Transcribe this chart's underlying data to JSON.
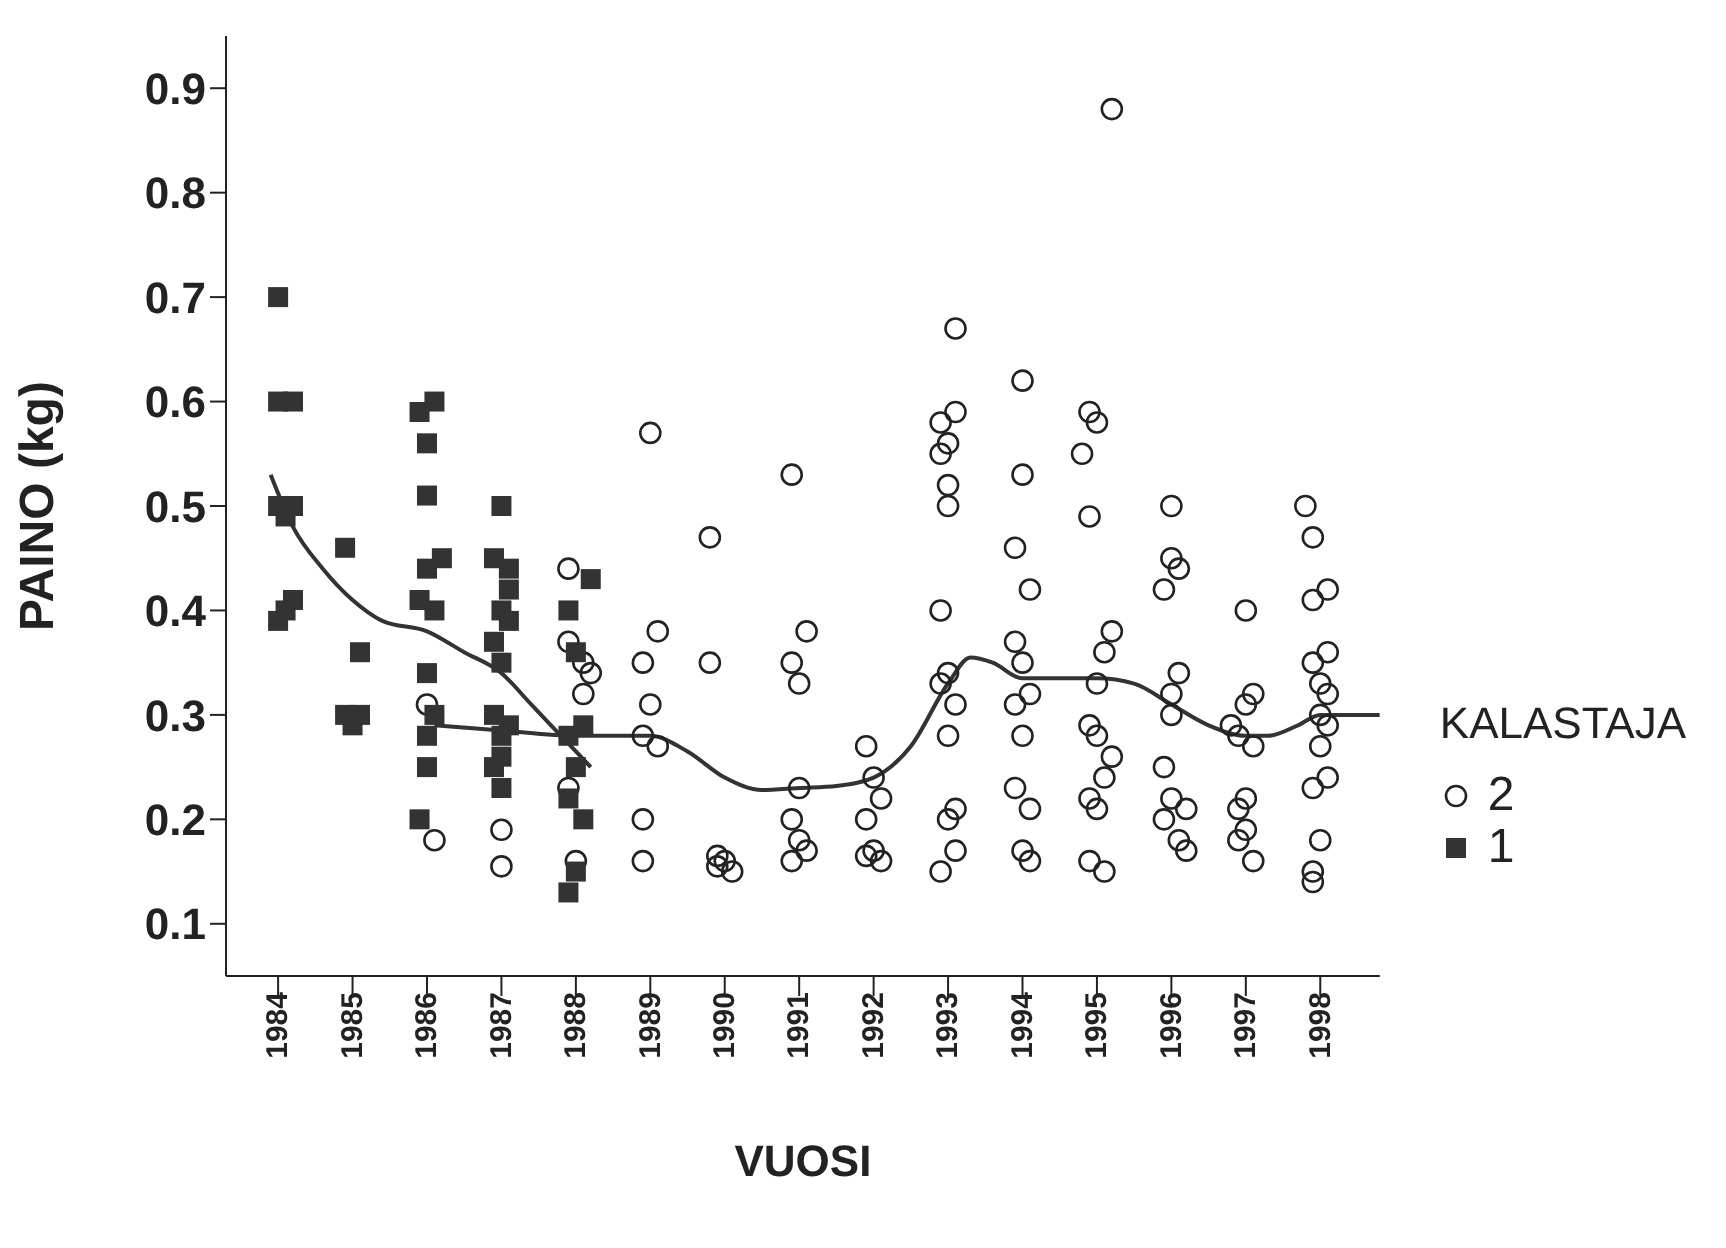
{
  "chart_data": {
    "type": "scatter",
    "xlabel": "VUOSI",
    "ylabel": "PAINO (kg)",
    "legend_title": "KALASTAJA",
    "legend": "right",
    "grid": false,
    "xlim": [
      1983.3,
      1998.8
    ],
    "xticks": [
      1984,
      1985,
      1986,
      1987,
      1988,
      1989,
      1990,
      1991,
      1992,
      1993,
      1994,
      1995,
      1996,
      1997,
      1998
    ],
    "ylim": [
      0.05,
      0.95
    ],
    "yticks": [
      0.1,
      0.2,
      0.3,
      0.4,
      0.5,
      0.6,
      0.7,
      0.8,
      0.9
    ],
    "series": [
      {
        "name": "2",
        "color": "#222222",
        "marker": "circle",
        "x": [
          1986.0,
          1986.1,
          1987.0,
          1987.0,
          1987.9,
          1987.9,
          1988.1,
          1988.2,
          1988.1,
          1987.9,
          1988.0,
          1988.9,
          1989.1,
          1988.9,
          1989.0,
          1988.9,
          1989.1,
          1988.9,
          1989.0,
          1989.8,
          1989.8,
          1989.9,
          1990.0,
          1989.9,
          1990.1,
          1990.9,
          1991.1,
          1990.9,
          1991.0,
          1991.0,
          1990.9,
          1991.0,
          1991.1,
          1990.9,
          1991.9,
          1992.0,
          1992.1,
          1991.9,
          1992.0,
          1992.1,
          1991.9,
          1993.1,
          1993.1,
          1992.9,
          1993.0,
          1992.9,
          1993.0,
          1993.0,
          1992.9,
          1993.0,
          1992.9,
          1993.1,
          1993.0,
          1993.1,
          1993.0,
          1993.1,
          1992.9,
          1994.0,
          1994.0,
          1993.9,
          1994.1,
          1993.9,
          1994.0,
          1994.1,
          1993.9,
          1994.0,
          1993.9,
          1994.1,
          1994.0,
          1994.1,
          1995.2,
          1994.9,
          1995.0,
          1994.8,
          1994.9,
          1995.2,
          1995.1,
          1995.0,
          1994.9,
          1995.0,
          1995.2,
          1995.1,
          1994.9,
          1995.0,
          1994.9,
          1995.1,
          1996.0,
          1996.0,
          1996.1,
          1995.9,
          1996.1,
          1996.0,
          1996.0,
          1995.9,
          1996.0,
          1996.2,
          1995.9,
          1996.1,
          1996.2,
          1997.0,
          1997.1,
          1997.0,
          1996.8,
          1996.9,
          1997.1,
          1997.0,
          1996.9,
          1997.0,
          1996.9,
          1997.1,
          1997.8,
          1997.9,
          1998.1,
          1997.9,
          1998.1,
          1997.9,
          1998.0,
          1998.1,
          1998.0,
          1998.1,
          1998.0,
          1998.1,
          1997.9,
          1998.0,
          1997.9,
          1997.9
        ],
        "values": [
          0.31,
          0.18,
          0.19,
          0.155,
          0.44,
          0.37,
          0.35,
          0.34,
          0.32,
          0.23,
          0.16,
          0.2,
          0.38,
          0.35,
          0.31,
          0.28,
          0.27,
          0.16,
          0.57,
          0.47,
          0.35,
          0.165,
          0.16,
          0.155,
          0.15,
          0.53,
          0.38,
          0.35,
          0.33,
          0.23,
          0.2,
          0.18,
          0.17,
          0.16,
          0.27,
          0.24,
          0.22,
          0.2,
          0.17,
          0.16,
          0.165,
          0.67,
          0.59,
          0.58,
          0.56,
          0.55,
          0.52,
          0.5,
          0.4,
          0.34,
          0.33,
          0.31,
          0.28,
          0.21,
          0.2,
          0.17,
          0.15,
          0.62,
          0.53,
          0.46,
          0.42,
          0.37,
          0.35,
          0.32,
          0.31,
          0.28,
          0.23,
          0.21,
          0.17,
          0.16,
          0.88,
          0.59,
          0.58,
          0.55,
          0.49,
          0.38,
          0.36,
          0.33,
          0.29,
          0.28,
          0.26,
          0.24,
          0.22,
          0.21,
          0.16,
          0.15,
          0.5,
          0.45,
          0.44,
          0.42,
          0.34,
          0.32,
          0.3,
          0.25,
          0.22,
          0.21,
          0.2,
          0.18,
          0.17,
          0.4,
          0.32,
          0.31,
          0.29,
          0.28,
          0.27,
          0.22,
          0.21,
          0.19,
          0.18,
          0.16,
          0.5,
          0.47,
          0.42,
          0.41,
          0.36,
          0.35,
          0.33,
          0.32,
          0.3,
          0.29,
          0.27,
          0.24,
          0.23,
          0.18,
          0.15,
          0.14
        ]
      },
      {
        "name": "1",
        "color": "#333333",
        "marker": "square",
        "x": [
          1984.0,
          1984.0,
          1984.2,
          1984.0,
          1984.1,
          1984.2,
          1984.0,
          1984.1,
          1984.2,
          1984.9,
          1984.9,
          1985.0,
          1985.1,
          1985.1,
          1985.9,
          1986.1,
          1986.0,
          1986.0,
          1986.0,
          1986.2,
          1985.9,
          1986.1,
          1986.0,
          1986.1,
          1986.0,
          1986.0,
          1985.9,
          1987.0,
          1986.9,
          1987.1,
          1987.1,
          1987.0,
          1987.1,
          1986.9,
          1987.0,
          1986.9,
          1987.1,
          1987.0,
          1987.0,
          1986.9,
          1987.0,
          1988.2,
          1987.9,
          1988.0,
          1988.1,
          1987.9,
          1988.0,
          1987.9,
          1988.1,
          1988.0,
          1987.9
        ],
        "values": [
          0.7,
          0.6,
          0.6,
          0.5,
          0.49,
          0.5,
          0.39,
          0.4,
          0.41,
          0.46,
          0.3,
          0.29,
          0.3,
          0.36,
          0.59,
          0.6,
          0.56,
          0.51,
          0.44,
          0.45,
          0.41,
          0.4,
          0.34,
          0.3,
          0.28,
          0.25,
          0.2,
          0.5,
          0.45,
          0.44,
          0.42,
          0.4,
          0.39,
          0.37,
          0.35,
          0.3,
          0.29,
          0.28,
          0.26,
          0.25,
          0.23,
          0.43,
          0.4,
          0.36,
          0.29,
          0.28,
          0.25,
          0.22,
          0.2,
          0.15,
          0.13
        ]
      },
      {
        "type": "line",
        "color": "#333333",
        "x": [
          1983.9,
          1984.2,
          1984.6,
          1985.0,
          1985.4,
          1986.0,
          1986.5,
          1987.0,
          1987.4,
          1987.8,
          1988.2
        ],
        "values": [
          0.53,
          0.48,
          0.44,
          0.41,
          0.39,
          0.38,
          0.36,
          0.34,
          0.31,
          0.28,
          0.25
        ]
      },
      {
        "type": "line",
        "color": "#333333",
        "x": [
          1986.1,
          1987.0,
          1988.0,
          1989.0,
          1989.5,
          1990.0,
          1990.5,
          1991.0,
          1991.5,
          1992.0,
          1992.5,
          1993.0,
          1993.3,
          1993.6,
          1994.0,
          1994.5,
          1995.0,
          1995.5,
          1996.0,
          1996.5,
          1997.0,
          1997.3,
          1997.7,
          1998.0,
          1998.8
        ],
        "values": [
          0.29,
          0.285,
          0.28,
          0.28,
          0.265,
          0.24,
          0.228,
          0.23,
          0.232,
          0.24,
          0.27,
          0.33,
          0.355,
          0.35,
          0.335,
          0.335,
          0.335,
          0.33,
          0.31,
          0.29,
          0.28,
          0.28,
          0.29,
          0.3,
          0.3
        ]
      }
    ]
  }
}
